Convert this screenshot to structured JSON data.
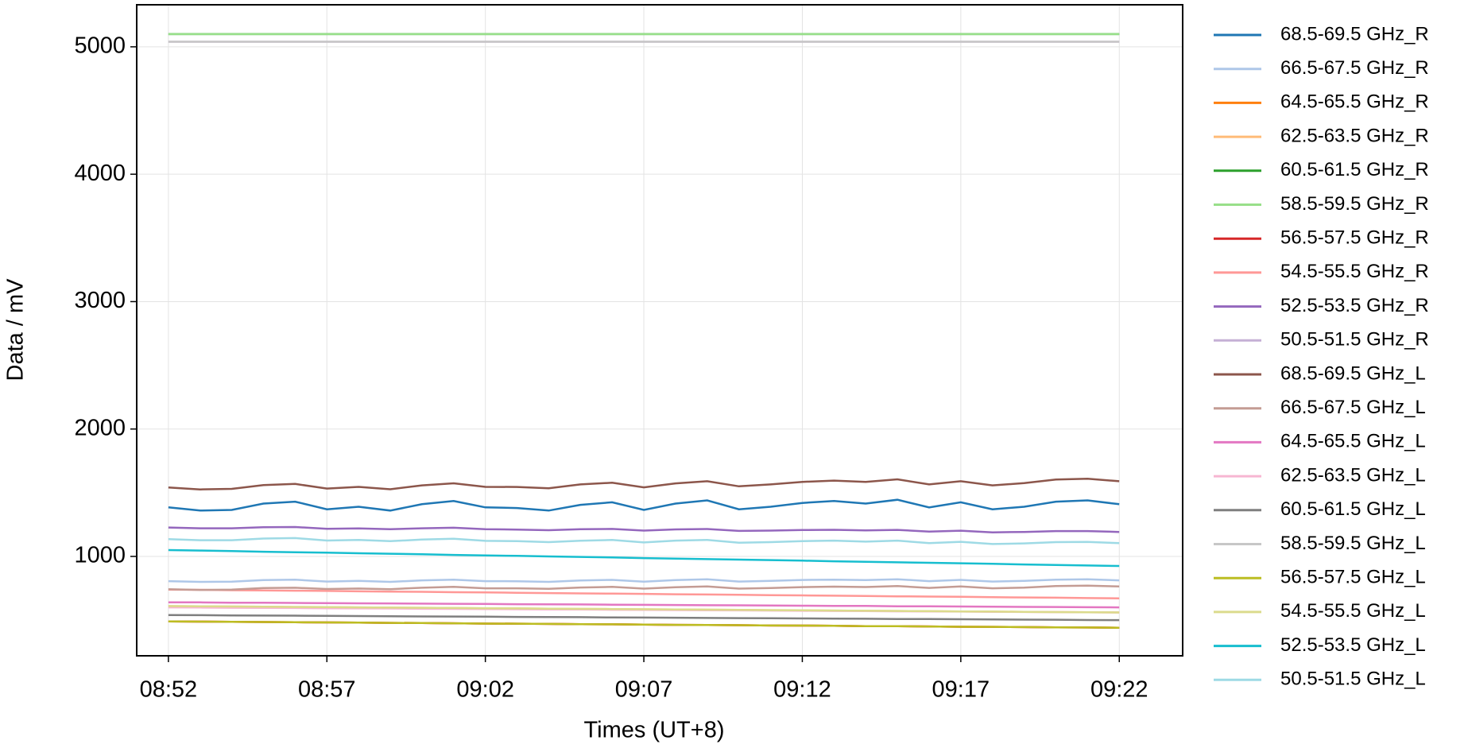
{
  "chart_data": {
    "type": "line",
    "x_label": "Times (UT+8)",
    "y_label": "Data / mV",
    "x": [
      "08:52",
      "08:53",
      "08:54",
      "08:55",
      "08:56",
      "08:57",
      "08:58",
      "08:59",
      "09:00",
      "09:01",
      "09:02",
      "09:03",
      "09:04",
      "09:05",
      "09:06",
      "09:07",
      "09:08",
      "09:09",
      "09:10",
      "09:11",
      "09:12",
      "09:13",
      "09:14",
      "09:15",
      "09:16",
      "09:17",
      "09:18",
      "09:19",
      "09:20",
      "09:21",
      "09:22"
    ],
    "xlim": [
      "08:51",
      "09:24"
    ],
    "xticks": [
      "08:52",
      "08:57",
      "09:02",
      "09:07",
      "09:12",
      "09:17",
      "09:22"
    ],
    "ylim": [
      220,
      5330
    ],
    "yticks": [
      1000,
      2000,
      3000,
      4000,
      5000
    ],
    "grid": true,
    "series": [
      {
        "name": "68.5-69.5 GHz_R",
        "color": "#1f77b4",
        "values": [
          1385,
          1360,
          1365,
          1415,
          1430,
          1370,
          1390,
          1360,
          1410,
          1435,
          1385,
          1380,
          1360,
          1405,
          1425,
          1365,
          1415,
          1440,
          1370,
          1390,
          1420,
          1435,
          1415,
          1445,
          1385,
          1425,
          1370,
          1390,
          1430,
          1440,
          1410
        ]
      },
      {
        "name": "66.5-67.5 GHz_R",
        "color": "#aec7e8",
        "values": [
          806,
          800,
          802,
          814,
          817,
          803,
          808,
          800,
          812,
          818,
          806,
          805,
          800,
          811,
          816,
          802,
          814,
          820,
          803,
          808,
          815,
          818,
          814,
          821,
          806,
          816,
          803,
          808,
          817,
          820,
          812
        ]
      },
      {
        "name": "64.5-65.5 GHz_R",
        "color": "#ff7f0e",
        "values": [
          490,
          488,
          487,
          485,
          483,
          482,
          480,
          478,
          477,
          475,
          473,
          472,
          470,
          468,
          467,
          465,
          463,
          462,
          460,
          458,
          457,
          455,
          453,
          452,
          450,
          448,
          447,
          445,
          443,
          442,
          440
        ]
      },
      {
        "name": "62.5-63.5 GHz_R",
        "color": "#ffbb78",
        "values": [
          610,
          608,
          607,
          605,
          603,
          602,
          600,
          598,
          597,
          595,
          593,
          592,
          590,
          588,
          587,
          585,
          583,
          582,
          580,
          578,
          577,
          575,
          573,
          572,
          570,
          568,
          567,
          565,
          563,
          562,
          560
        ]
      },
      {
        "name": "60.5-61.5 GHz_R",
        "color": "#2ca02c",
        "values": [
          5100,
          5100,
          5100,
          5100,
          5100,
          5100,
          5100,
          5100,
          5100,
          5100,
          5100,
          5100,
          5100,
          5100,
          5100,
          5100,
          5100,
          5100,
          5100,
          5100,
          5100,
          5100,
          5100,
          5100,
          5100,
          5100,
          5100,
          5100,
          5100,
          5100,
          5100
        ]
      },
      {
        "name": "58.5-59.5 GHz_R",
        "color": "#98df8a",
        "values": [
          5100,
          5100,
          5100,
          5100,
          5100,
          5100,
          5100,
          5100,
          5100,
          5100,
          5100,
          5100,
          5100,
          5100,
          5100,
          5100,
          5100,
          5100,
          5100,
          5100,
          5100,
          5100,
          5100,
          5100,
          5100,
          5100,
          5100,
          5100,
          5100,
          5100,
          5100
        ]
      },
      {
        "name": "56.5-57.5 GHz_R",
        "color": "#d62728",
        "values": [
          490,
          488,
          487,
          485,
          483,
          482,
          480,
          478,
          477,
          475,
          473,
          472,
          470,
          468,
          467,
          465,
          463,
          462,
          460,
          458,
          457,
          455,
          453,
          452,
          450,
          448,
          447,
          445,
          443,
          442,
          440
        ]
      },
      {
        "name": "54.5-55.5 GHz_R",
        "color": "#ff9896",
        "values": [
          740,
          738,
          735,
          733,
          731,
          729,
          726,
          724,
          722,
          719,
          717,
          715,
          712,
          710,
          708,
          706,
          703,
          701,
          699,
          696,
          694,
          692,
          689,
          687,
          685,
          683,
          680,
          678,
          676,
          673,
          671
        ]
      },
      {
        "name": "52.5-53.5 GHz_R",
        "color": "#9467bd",
        "values": [
          1227,
          1221,
          1221,
          1229,
          1231,
          1217,
          1220,
          1213,
          1221,
          1225,
          1214,
          1211,
          1206,
          1214,
          1216,
          1203,
          1212,
          1215,
          1200,
          1203,
          1207,
          1209,
          1204,
          1208,
          1195,
          1202,
          1189,
          1192,
          1199,
          1199,
          1192
        ]
      },
      {
        "name": "50.5-51.5 GHz_R",
        "color": "#c5b0d5",
        "values": [
          5040,
          5040,
          5040,
          5040,
          5040,
          5040,
          5040,
          5040,
          5040,
          5040,
          5040,
          5040,
          5040,
          5040,
          5040,
          5040,
          5040,
          5040,
          5040,
          5040,
          5040,
          5040,
          5040,
          5040,
          5040,
          5040,
          5040,
          5040,
          5040,
          5040,
          5040
        ]
      },
      {
        "name": "68.5-69.5 GHz_L",
        "color": "#8c564b",
        "values": [
          1541,
          1526,
          1530,
          1560,
          1569,
          1533,
          1546,
          1527,
          1558,
          1574,
          1546,
          1545,
          1535,
          1565,
          1578,
          1542,
          1573,
          1590,
          1550,
          1565,
          1585,
          1595,
          1585,
          1605,
          1565,
          1590,
          1558,
          1575,
          1603,
          1610,
          1590
        ]
      },
      {
        "name": "66.5-67.5 GHz_L",
        "color": "#c49c94",
        "values": [
          742,
          737,
          739,
          752,
          754,
          744,
          748,
          743,
          754,
          761,
          750,
          750,
          746,
          756,
          761,
          747,
          758,
          764,
          747,
          752,
          759,
          763,
          760,
          767,
          753,
          765,
          750,
          755,
          767,
          770,
          765
        ]
      },
      {
        "name": "64.5-65.5 GHz_L",
        "color": "#e377c2",
        "values": [
          640,
          639,
          637,
          636,
          635,
          633,
          632,
          631,
          629,
          628,
          627,
          625,
          624,
          623,
          621,
          620,
          619,
          617,
          616,
          615,
          613,
          612,
          611,
          609,
          608,
          607,
          605,
          604,
          603,
          601,
          600
        ]
      },
      {
        "name": "62.5-63.5 GHz_L",
        "color": "#f7b6d2",
        "values": [
          600,
          599,
          597,
          596,
          595,
          593,
          592,
          591,
          589,
          588,
          587,
          585,
          584,
          583,
          581,
          580,
          579,
          577,
          576,
          575,
          573,
          572,
          571,
          569,
          568,
          567,
          565,
          564,
          563,
          561,
          560
        ]
      },
      {
        "name": "60.5-61.5 GHz_L",
        "color": "#7f7f7f",
        "values": [
          540,
          539,
          537,
          536,
          535,
          533,
          532,
          531,
          529,
          528,
          527,
          525,
          524,
          523,
          521,
          520,
          519,
          517,
          516,
          515,
          513,
          512,
          511,
          509,
          508,
          507,
          505,
          504,
          503,
          501,
          500
        ]
      },
      {
        "name": "58.5-59.5 GHz_L",
        "color": "#c7c7c7",
        "values": [
          5040,
          5040,
          5040,
          5040,
          5040,
          5040,
          5040,
          5040,
          5040,
          5040,
          5040,
          5040,
          5040,
          5040,
          5040,
          5040,
          5040,
          5040,
          5040,
          5040,
          5040,
          5040,
          5040,
          5040,
          5040,
          5040,
          5040,
          5040,
          5040,
          5040,
          5040
        ]
      },
      {
        "name": "56.5-57.5 GHz_L",
        "color": "#bcbd22",
        "values": [
          490,
          488,
          487,
          485,
          483,
          482,
          480,
          478,
          477,
          475,
          473,
          472,
          470,
          468,
          467,
          465,
          463,
          462,
          460,
          458,
          457,
          455,
          453,
          452,
          450,
          448,
          447,
          445,
          443,
          442,
          440
        ]
      },
      {
        "name": "54.5-55.5 GHz_L",
        "color": "#dbdb8d",
        "values": [
          610,
          608,
          607,
          605,
          603,
          602,
          600,
          598,
          597,
          595,
          593,
          592,
          590,
          588,
          587,
          585,
          583,
          582,
          580,
          578,
          577,
          575,
          573,
          572,
          570,
          568,
          567,
          565,
          563,
          562,
          560
        ]
      },
      {
        "name": "52.5-53.5 GHz_L",
        "color": "#17becf",
        "values": [
          1050,
          1046,
          1042,
          1037,
          1033,
          1029,
          1025,
          1021,
          1017,
          1012,
          1008,
          1004,
          1000,
          996,
          992,
          987,
          983,
          979,
          975,
          971,
          967,
          962,
          958,
          954,
          950,
          946,
          942,
          937,
          933,
          929,
          925
        ]
      },
      {
        "name": "50.5-51.5 GHz_L",
        "color": "#9edae5",
        "values": [
          1136,
          1127,
          1127,
          1140,
          1144,
          1125,
          1129,
          1120,
          1132,
          1139,
          1122,
          1120,
          1112,
          1123,
          1129,
          1110,
          1124,
          1130,
          1108,
          1112,
          1120,
          1124,
          1116,
          1124,
          1104,
          1115,
          1097,
          1102,
          1112,
          1114,
          1104
        ]
      }
    ]
  }
}
